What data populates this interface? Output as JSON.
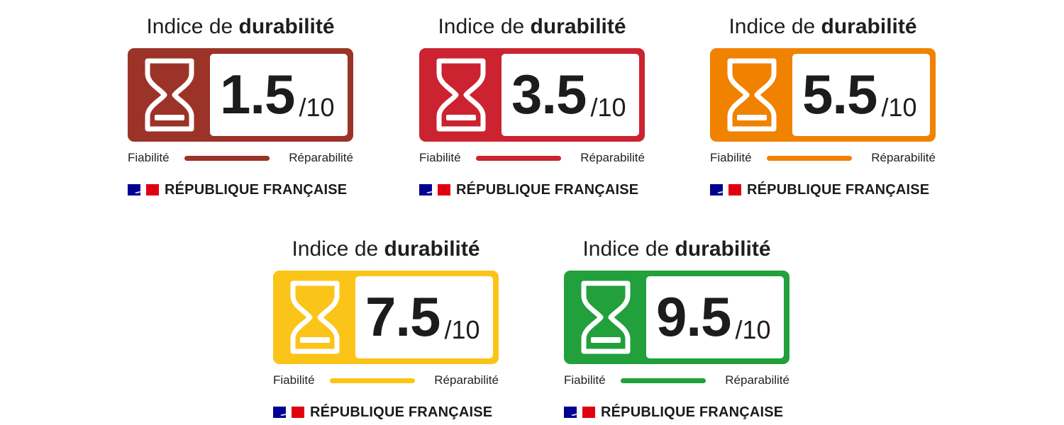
{
  "labels": [
    {
      "title_regular": "Indice de ",
      "title_bold": "durabilité",
      "score": "1.5",
      "out_of": "/10",
      "left_label": "Fiabilité",
      "right_label": "Réparabilité",
      "footer": "RÉPUBLIQUE FRANÇAISE",
      "color": "#9b3328"
    },
    {
      "title_regular": "Indice de ",
      "title_bold": "durabilité",
      "score": "3.5",
      "out_of": "/10",
      "left_label": "Fiabilité",
      "right_label": "Réparabilité",
      "footer": "RÉPUBLIQUE FRANÇAISE",
      "color": "#cc2331"
    },
    {
      "title_regular": "Indice de ",
      "title_bold": "durabilité",
      "score": "5.5",
      "out_of": "/10",
      "left_label": "Fiabilité",
      "right_label": "Réparabilité",
      "footer": "RÉPUBLIQUE FRANÇAISE",
      "color": "#f08200"
    },
    {
      "title_regular": "Indice de ",
      "title_bold": "durabilité",
      "score": "7.5",
      "out_of": "/10",
      "left_label": "Fiabilité",
      "right_label": "Réparabilité",
      "footer": "RÉPUBLIQUE FRANÇAISE",
      "color": "#fbc419"
    },
    {
      "title_regular": "Indice de ",
      "title_bold": "durabilité",
      "score": "9.5",
      "out_of": "/10",
      "left_label": "Fiabilité",
      "right_label": "Réparabilité",
      "footer": "RÉPUBLIQUE FRANÇAISE",
      "color": "#21a03c"
    }
  ],
  "flag_colors": {
    "blue": "#000091",
    "white": "#ffffff",
    "red": "#e1000f"
  },
  "icons": {
    "panel_icon": "hourglass-icon",
    "footer_icon": "french-flag-icon"
  }
}
